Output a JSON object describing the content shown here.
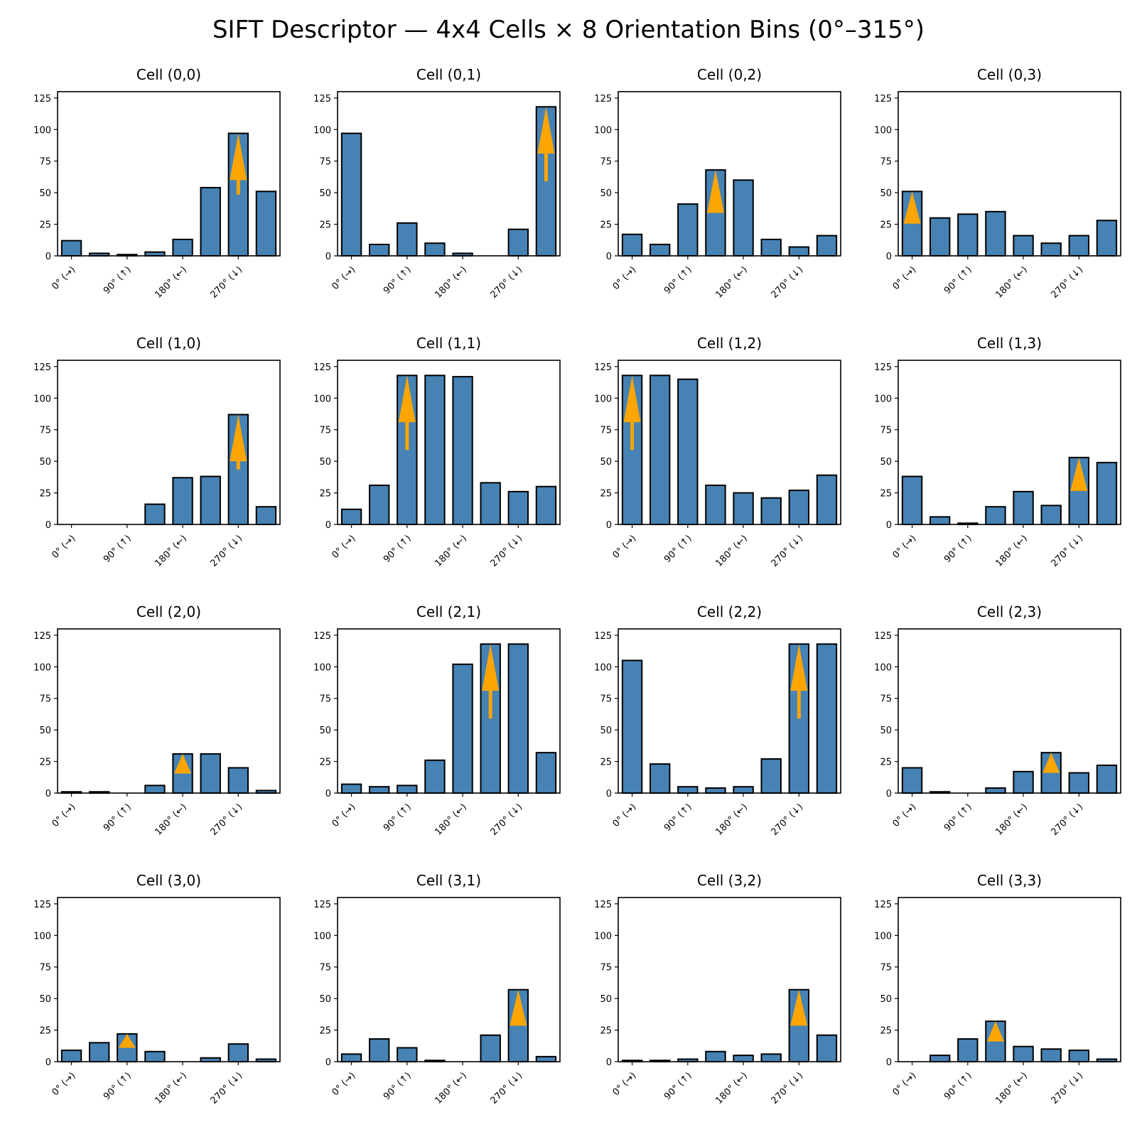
{
  "title": "SIFT Descriptor — 4x4 Cells × 8 Orientation Bins (0°–315°)",
  "colors": {
    "bar": "#4682b4",
    "bar_edge": "#000000",
    "arrow": "#ffa500"
  },
  "chart_data": {
    "type": "bar",
    "grid": false,
    "legend": "none",
    "bins": [
      0,
      45,
      90,
      135,
      180,
      225,
      270,
      315
    ],
    "xtick_positions": [
      0,
      90,
      180,
      270
    ],
    "xtick_labels": [
      "0° (→)",
      "90° (↑)",
      "180° (←)",
      "270° (↓)"
    ],
    "ylim": [
      0,
      130
    ],
    "yticks": [
      0,
      25,
      50,
      75,
      100,
      125
    ],
    "cells": [
      {
        "title": "Cell (0,0)",
        "values": [
          12,
          2,
          1,
          3,
          13,
          54,
          97,
          51
        ],
        "dominant_bin": 6
      },
      {
        "title": "Cell (0,1)",
        "values": [
          97,
          9,
          26,
          10,
          2,
          0,
          21,
          118
        ],
        "dominant_bin": 7
      },
      {
        "title": "Cell (0,2)",
        "values": [
          17,
          9,
          41,
          68,
          60,
          13,
          7,
          16
        ],
        "dominant_bin": 3
      },
      {
        "title": "Cell (0,3)",
        "values": [
          51,
          30,
          33,
          35,
          16,
          10,
          16,
          28
        ],
        "dominant_bin": 0
      },
      {
        "title": "Cell (1,0)",
        "values": [
          0,
          0,
          0,
          16,
          37,
          38,
          87,
          14
        ],
        "dominant_bin": 6
      },
      {
        "title": "Cell (1,1)",
        "values": [
          12,
          31,
          118,
          118,
          117,
          33,
          26,
          30
        ],
        "dominant_bin": 2
      },
      {
        "title": "Cell (1,2)",
        "values": [
          118,
          118,
          115,
          31,
          25,
          21,
          27,
          39
        ],
        "dominant_bin": 0
      },
      {
        "title": "Cell (1,3)",
        "values": [
          38,
          6,
          1,
          14,
          26,
          15,
          53,
          49
        ],
        "dominant_bin": 6
      },
      {
        "title": "Cell (2,0)",
        "values": [
          1,
          1,
          0,
          6,
          31,
          31,
          20,
          2
        ],
        "dominant_bin": 4
      },
      {
        "title": "Cell (2,1)",
        "values": [
          7,
          5,
          6,
          26,
          102,
          118,
          118,
          32
        ],
        "dominant_bin": 5
      },
      {
        "title": "Cell (2,2)",
        "values": [
          105,
          23,
          5,
          4,
          5,
          27,
          118,
          118
        ],
        "dominant_bin": 6
      },
      {
        "title": "Cell (2,3)",
        "values": [
          20,
          1,
          0,
          4,
          17,
          32,
          16,
          22
        ],
        "dominant_bin": 5
      },
      {
        "title": "Cell (3,0)",
        "values": [
          9,
          15,
          22,
          8,
          0,
          3,
          14,
          2
        ],
        "dominant_bin": 2
      },
      {
        "title": "Cell (3,1)",
        "values": [
          6,
          18,
          11,
          1,
          0,
          21,
          57,
          4
        ],
        "dominant_bin": 6
      },
      {
        "title": "Cell (3,2)",
        "values": [
          1,
          1,
          2,
          8,
          5,
          6,
          57,
          21
        ],
        "dominant_bin": 6
      },
      {
        "title": "Cell (3,3)",
        "values": [
          0,
          5,
          18,
          32,
          12,
          10,
          9,
          2
        ],
        "dominant_bin": 3
      }
    ]
  }
}
